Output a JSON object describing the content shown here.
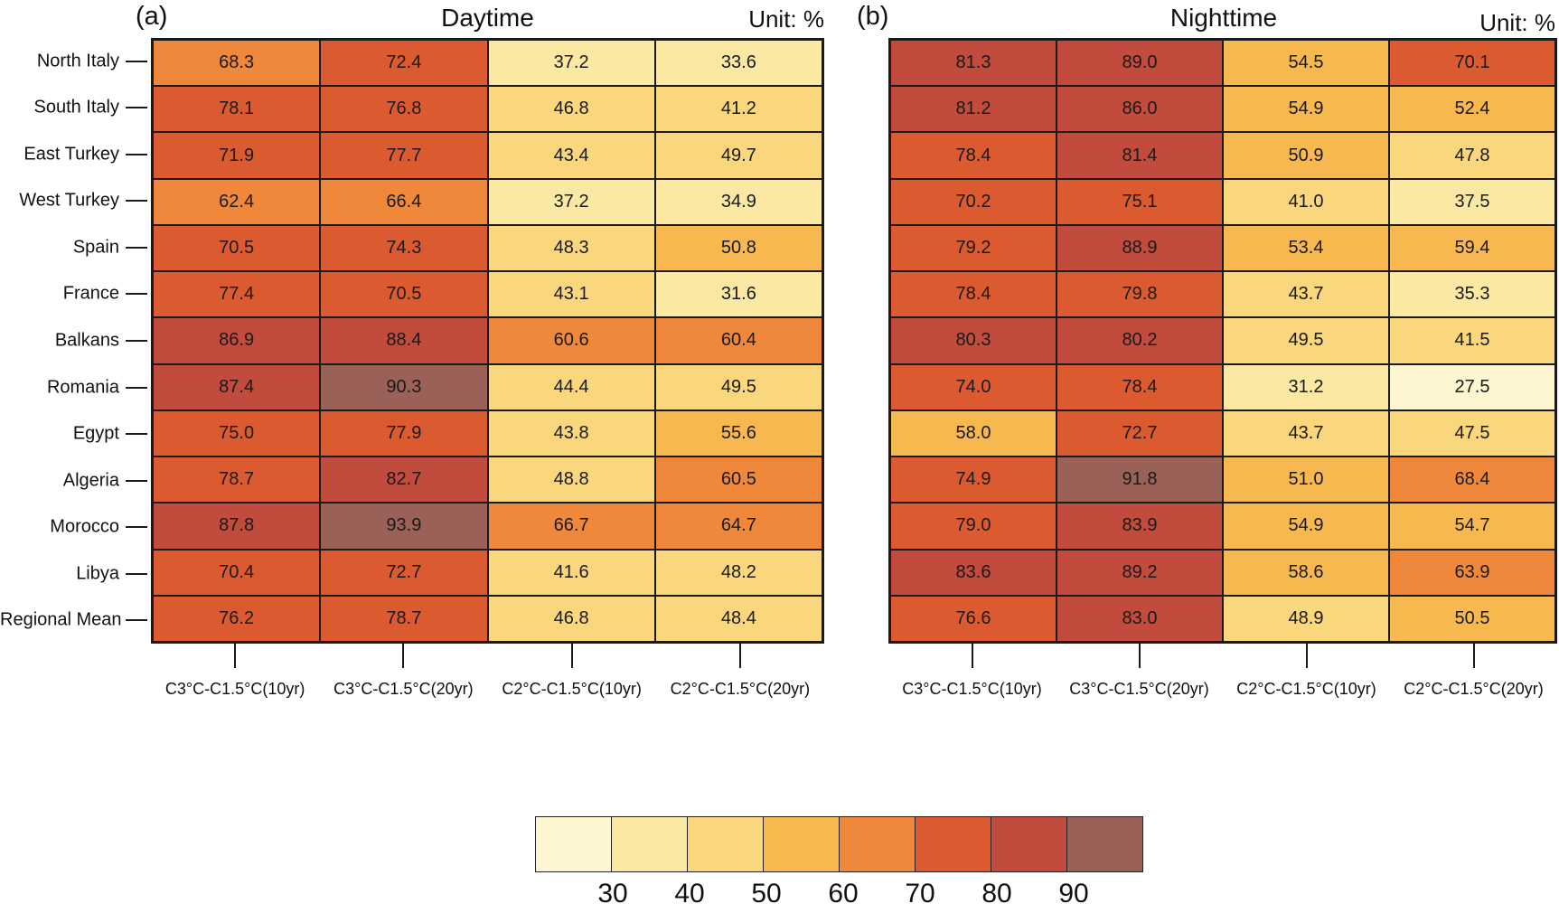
{
  "chart_data": {
    "type": "heatmap",
    "unit": "%",
    "panels": [
      {
        "label": "(a)",
        "title": "Daytime",
        "unit_label": "Unit: %",
        "x_categories": [
          "C3°C-C1.5°C(10yr)",
          "C3°C-C1.5°C(20yr)",
          "C2°C-C1.5°C(10yr)",
          "C2°C-C1.5°C(20yr)"
        ],
        "show_y_labels": true,
        "rows": [
          {
            "region": "North Italy",
            "values": [
              "68.3",
              "72.4",
              "37.2",
              "33.6"
            ]
          },
          {
            "region": "South Italy",
            "values": [
              "78.1",
              "76.8",
              "46.8",
              "41.2"
            ]
          },
          {
            "region": "East Turkey",
            "values": [
              "71.9",
              "77.7",
              "43.4",
              "49.7"
            ]
          },
          {
            "region": "West Turkey",
            "values": [
              "62.4",
              "66.4",
              "37.2",
              "34.9"
            ]
          },
          {
            "region": "Spain",
            "values": [
              "70.5",
              "74.3",
              "48.3",
              "50.8"
            ]
          },
          {
            "region": "France",
            "values": [
              "77.4",
              "70.5",
              "43.1",
              "31.6"
            ]
          },
          {
            "region": "Balkans",
            "values": [
              "86.9",
              "88.4",
              "60.6",
              "60.4"
            ]
          },
          {
            "region": "Romania",
            "values": [
              "87.4",
              "90.3",
              "44.4",
              "49.5"
            ]
          },
          {
            "region": "Egypt",
            "values": [
              "75.0",
              "77.9",
              "43.8",
              "55.6"
            ]
          },
          {
            "region": "Algeria",
            "values": [
              "78.7",
              "82.7",
              "48.8",
              "60.5"
            ]
          },
          {
            "region": "Morocco",
            "values": [
              "87.8",
              "93.9",
              "66.7",
              "64.7"
            ]
          },
          {
            "region": "Libya",
            "values": [
              "70.4",
              "72.7",
              "41.6",
              "48.2"
            ]
          },
          {
            "region": "Regional Mean",
            "values": [
              "76.2",
              "78.7",
              "46.8",
              "48.4"
            ]
          }
        ]
      },
      {
        "label": "(b)",
        "title": "Nighttime",
        "unit_label": "Unit: %",
        "x_categories": [
          "C3°C-C1.5°C(10yr)",
          "C3°C-C1.5°C(20yr)",
          "C2°C-C1.5°C(10yr)",
          "C2°C-C1.5°C(20yr)"
        ],
        "show_y_labels": false,
        "rows": [
          {
            "region": "North Italy",
            "values": [
              "81.3",
              "89.0",
              "54.5",
              "70.1"
            ]
          },
          {
            "region": "South Italy",
            "values": [
              "81.2",
              "86.0",
              "54.9",
              "52.4"
            ]
          },
          {
            "region": "East Turkey",
            "values": [
              "78.4",
              "81.4",
              "50.9",
              "47.8"
            ]
          },
          {
            "region": "West Turkey",
            "values": [
              "70.2",
              "75.1",
              "41.0",
              "37.5"
            ]
          },
          {
            "region": "Spain",
            "values": [
              "79.2",
              "88.9",
              "53.4",
              "59.4"
            ]
          },
          {
            "region": "France",
            "values": [
              "78.4",
              "79.8",
              "43.7",
              "35.3"
            ]
          },
          {
            "region": "Balkans",
            "values": [
              "80.3",
              "80.2",
              "49.5",
              "41.5"
            ]
          },
          {
            "region": "Romania",
            "values": [
              "74.0",
              "78.4",
              "31.2",
              "27.5"
            ]
          },
          {
            "region": "Egypt",
            "values": [
              "58.0",
              "72.7",
              "43.7",
              "47.5"
            ]
          },
          {
            "region": "Algeria",
            "values": [
              "74.9",
              "91.8",
              "51.0",
              "68.4"
            ]
          },
          {
            "region": "Morocco",
            "values": [
              "79.0",
              "83.9",
              "54.9",
              "54.7"
            ]
          },
          {
            "region": "Libya",
            "values": [
              "83.6",
              "89.2",
              "58.6",
              "63.9"
            ]
          },
          {
            "region": "Regional Mean",
            "values": [
              "76.6",
              "83.0",
              "48.9",
              "50.5"
            ]
          }
        ]
      }
    ],
    "colorbar": {
      "tick_labels": [
        "30",
        "40",
        "50",
        "60",
        "70",
        "80",
        "90"
      ],
      "bin_edges": [
        30,
        40,
        50,
        60,
        70,
        80,
        90
      ],
      "bin_colors": [
        "#FDF6D0",
        "#FBE9A3",
        "#FAD77C",
        "#F7B850",
        "#F0883C",
        "#DC5A30",
        "#C14B3C",
        "#9A6159"
      ]
    }
  }
}
